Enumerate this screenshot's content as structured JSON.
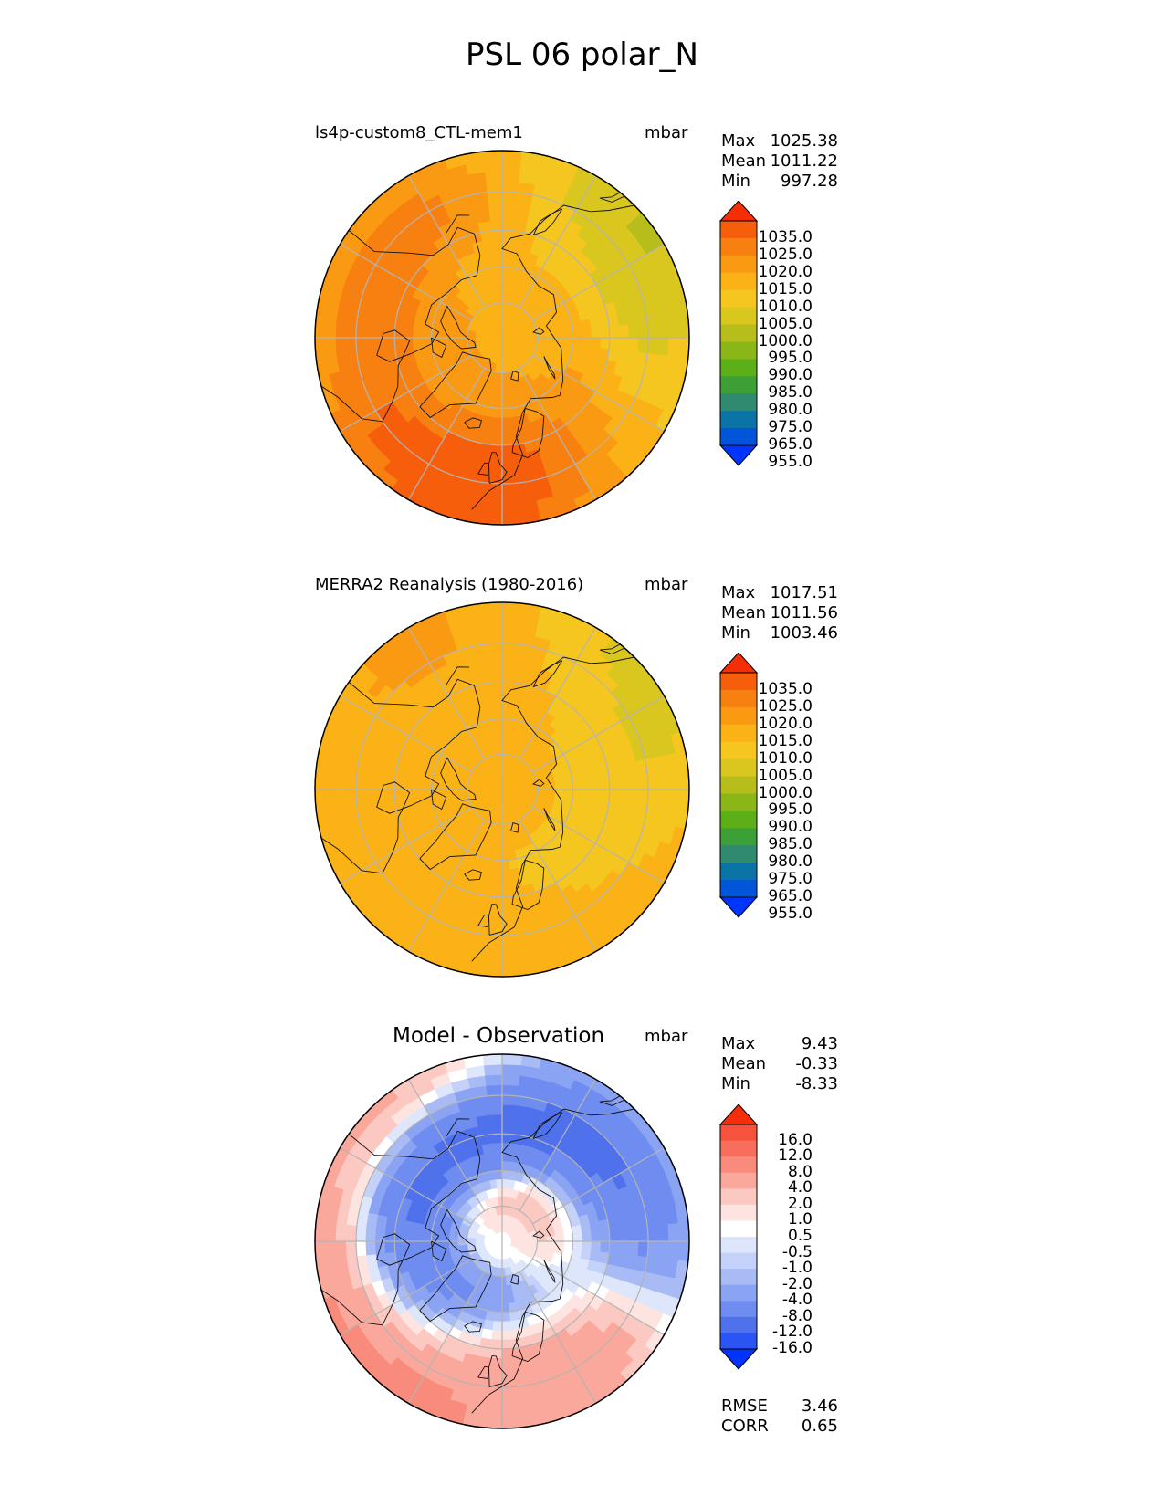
{
  "figure": {
    "title": "PSL 06 polar_N"
  },
  "colors": {
    "test_ref_levels": [
      "#0035ff",
      "#0055d8",
      "#0a74a6",
      "#2f8a6f",
      "#3ca036",
      "#5caf17",
      "#8ab618",
      "#b7be1c",
      "#d9c71f",
      "#f5c61f",
      "#fbb216",
      "#fa9a13",
      "#f78011",
      "#f65e0c",
      "#f52e05"
    ],
    "diff_levels": [
      "#0033ff",
      "#2a55f2",
      "#4f72ec",
      "#6f8cf0",
      "#8ba3f3",
      "#a8bbf5",
      "#c4d1f8",
      "#dde6fb",
      "#ffffff",
      "#fde4e1",
      "#fcc9c2",
      "#faa79c",
      "#f98b7d",
      "#f86e5c",
      "#f6523d",
      "#f52e0a"
    ],
    "grid": "#b4b4b4",
    "coast": "#111111"
  },
  "chart_data": [
    {
      "type": "heatmap",
      "projection": "north-polar-stereographic",
      "title": "ls4p-custom8_CTL-mem1",
      "units": "mbar",
      "stats": {
        "max_label": "Max",
        "max": "1025.38",
        "mean_label": "Mean",
        "mean": "1011.22",
        "min_label": "Min",
        "min": "997.28"
      },
      "levels": [
        950,
        955,
        965,
        975,
        980,
        985,
        990,
        995,
        1000,
        1005,
        1010,
        1015,
        1020,
        1025,
        1035,
        1040
      ],
      "colorbar_ticks": [
        "1035.0",
        "1025.0",
        "1020.0",
        "1015.0",
        "1010.0",
        "1005.0",
        "1000.0",
        "995.0",
        "990.0",
        "985.0",
        "980.0",
        "975.0",
        "965.0",
        "955.0"
      ],
      "field": {
        "base": 1010,
        "blobs": [
          {
            "lon": -100,
            "lat": 55,
            "value": 1018
          },
          {
            "lon": -150,
            "lat": 50,
            "value": 1020
          },
          {
            "lon": -60,
            "lat": 45,
            "value": 1017
          },
          {
            "lon": 0,
            "lat": 40,
            "value": 1021
          },
          {
            "lon": -20,
            "lat": 50,
            "value": 1020
          },
          {
            "lon": 100,
            "lat": 55,
            "value": 1005
          },
          {
            "lon": 130,
            "lat": 40,
            "value": 1001
          },
          {
            "lon": 60,
            "lat": 70,
            "value": 1012
          },
          {
            "lon": -90,
            "lat": 78,
            "value": 1014
          },
          {
            "lon": 170,
            "lat": 55,
            "value": 1008
          },
          {
            "lon": 20,
            "lat": 60,
            "value": 1018
          }
        ]
      }
    },
    {
      "type": "heatmap",
      "projection": "north-polar-stereographic",
      "title": "MERRA2 Reanalysis (1980-2016)",
      "units": "mbar",
      "stats": {
        "max_label": "Max",
        "max": "1017.51",
        "mean_label": "Mean",
        "mean": "1011.56",
        "min_label": "Min",
        "min": "1003.46"
      },
      "levels": [
        950,
        955,
        965,
        975,
        980,
        985,
        990,
        995,
        1000,
        1005,
        1010,
        1015,
        1020,
        1025,
        1035,
        1040
      ],
      "colorbar_ticks": [
        "1035.0",
        "1025.0",
        "1020.0",
        "1015.0",
        "1010.0",
        "1005.0",
        "1000.0",
        "995.0",
        "990.0",
        "985.0",
        "980.0",
        "975.0",
        "965.0",
        "955.0"
      ],
      "field": {
        "base": 1012,
        "blobs": [
          {
            "lon": 100,
            "lat": 55,
            "value": 1008
          },
          {
            "lon": 60,
            "lat": 65,
            "value": 1009
          },
          {
            "lon": 130,
            "lat": 40,
            "value": 1004
          },
          {
            "lon": -150,
            "lat": 45,
            "value": 1016
          },
          {
            "lon": -100,
            "lat": 80,
            "value": 1014
          },
          {
            "lon": 0,
            "lat": 40,
            "value": 1015
          }
        ]
      }
    },
    {
      "type": "heatmap",
      "projection": "north-polar-stereographic",
      "title": "Model - Observation",
      "units": "mbar",
      "stats": {
        "max_label": "Max",
        "max": "9.43",
        "mean_label": "Mean",
        "mean": "-0.33",
        "min_label": "Min",
        "min": "-8.33"
      },
      "levels": [
        -20,
        -16,
        -12,
        -8,
        -4,
        -2,
        -1,
        -0.5,
        0.5,
        1,
        2,
        4,
        8,
        12,
        16,
        20
      ],
      "colorbar_ticks": [
        "16.0",
        "12.0",
        "8.0",
        "4.0",
        "2.0",
        "1.0",
        "0.5",
        "-0.5",
        "-1.0",
        "-2.0",
        "-4.0",
        "-8.0",
        "-12.0",
        "-16.0"
      ],
      "extra_stats": {
        "rmse_label": "RMSE",
        "rmse": "3.46",
        "corr_label": "CORR",
        "corr": "0.65"
      },
      "field": {
        "base": 0,
        "blobs": [
          {
            "lon": -100,
            "lat": 65,
            "value": -6
          },
          {
            "lon": -160,
            "lat": 60,
            "value": -6
          },
          {
            "lon": 150,
            "lat": 55,
            "value": -7
          },
          {
            "lon": 100,
            "lat": 50,
            "value": -5
          },
          {
            "lon": 30,
            "lat": 50,
            "value": 7
          },
          {
            "lon": -30,
            "lat": 40,
            "value": 8
          },
          {
            "lon": -140,
            "lat": 40,
            "value": 5
          },
          {
            "lon": 170,
            "lat": 75,
            "value": 5
          },
          {
            "lon": -75,
            "lat": 35,
            "value": 7
          },
          {
            "lon": 0,
            "lat": 80,
            "value": -3
          },
          {
            "lon": 80,
            "lat": 80,
            "value": 2
          }
        ]
      }
    }
  ]
}
